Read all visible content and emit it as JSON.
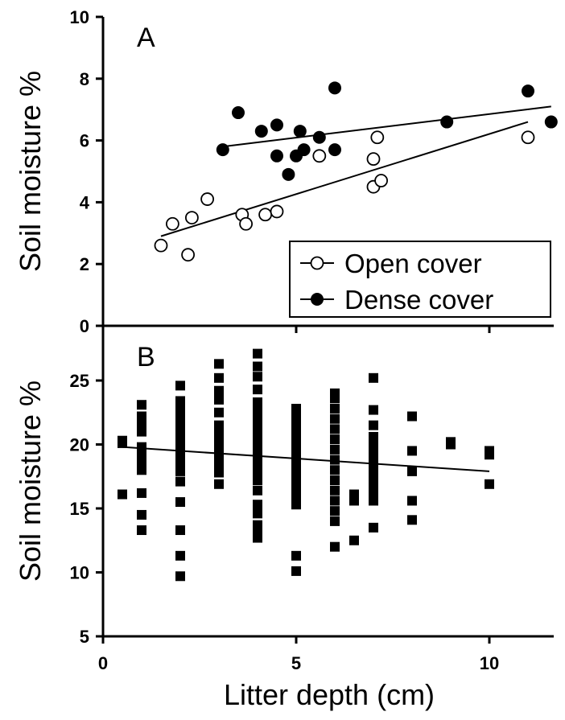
{
  "chart_data": [
    {
      "panel": "A",
      "type": "scatter",
      "ylabel": "Soil moisture %",
      "xlim": [
        0,
        12
      ],
      "ylim": [
        0,
        10
      ],
      "yticks": [
        "0",
        "2",
        "4",
        "6",
        "8",
        "10"
      ],
      "legend_position": "bottom-right",
      "series": [
        {
          "name": "Open cover",
          "marker": "open-circle",
          "points": [
            [
              1.5,
              2.6
            ],
            [
              1.8,
              3.3
            ],
            [
              2.2,
              2.3
            ],
            [
              2.3,
              3.5
            ],
            [
              2.7,
              4.1
            ],
            [
              3.6,
              3.6
            ],
            [
              3.7,
              3.3
            ],
            [
              4.2,
              3.6
            ],
            [
              4.5,
              3.7
            ],
            [
              5.6,
              5.5
            ],
            [
              7.0,
              4.5
            ],
            [
              7.0,
              5.4
            ],
            [
              7.1,
              6.1
            ],
            [
              7.2,
              4.7
            ],
            [
              11.0,
              6.1
            ]
          ],
          "fit": [
            [
              1.5,
              2.9
            ],
            [
              11.0,
              6.6
            ]
          ]
        },
        {
          "name": "Dense cover",
          "marker": "filled-circle",
          "points": [
            [
              3.1,
              5.7
            ],
            [
              3.5,
              6.9
            ],
            [
              4.1,
              6.3
            ],
            [
              4.5,
              6.5
            ],
            [
              4.5,
              5.5
            ],
            [
              4.8,
              4.9
            ],
            [
              5.0,
              5.5
            ],
            [
              5.1,
              6.3
            ],
            [
              5.2,
              5.7
            ],
            [
              5.6,
              6.1
            ],
            [
              6.0,
              7.7
            ],
            [
              6.0,
              5.7
            ],
            [
              8.9,
              6.6
            ],
            [
              11.0,
              7.6
            ],
            [
              11.6,
              6.6
            ]
          ],
          "fit": [
            [
              3.1,
              5.8
            ],
            [
              11.6,
              7.1
            ]
          ]
        }
      ]
    },
    {
      "panel": "B",
      "type": "scatter",
      "xlabel": "Litter depth (cm)",
      "ylabel": "Soil moisture %",
      "xlim": [
        0,
        12
      ],
      "ylim": [
        5,
        28
      ],
      "xticks": [
        "0",
        "5",
        "10"
      ],
      "yticks": [
        "5",
        "10",
        "15",
        "20",
        "25"
      ],
      "series": [
        {
          "marker": "filled-square",
          "points": [
            [
              0.5,
              16.1
            ],
            [
              0.5,
              20.1
            ],
            [
              0.5,
              20.3
            ],
            [
              1,
              13.3
            ],
            [
              1,
              14.5
            ],
            [
              1,
              16.2
            ],
            [
              1,
              18.0
            ],
            [
              1,
              18.5
            ],
            [
              1,
              19.0
            ],
            [
              1,
              19.5
            ],
            [
              1,
              19.8
            ],
            [
              1,
              21.0
            ],
            [
              1,
              21.5
            ],
            [
              1,
              22.2
            ],
            [
              1,
              23.1
            ],
            [
              2,
              9.7
            ],
            [
              2,
              11.3
            ],
            [
              2,
              13.3
            ],
            [
              2,
              15.5
            ],
            [
              2,
              17.1
            ],
            [
              2,
              17.9
            ],
            [
              2,
              18.3
            ],
            [
              2,
              18.8
            ],
            [
              2,
              19.3
            ],
            [
              2,
              19.7
            ],
            [
              2,
              20.1
            ],
            [
              2,
              20.6
            ],
            [
              2,
              21.1
            ],
            [
              2,
              21.6
            ],
            [
              2,
              22.1
            ],
            [
              2,
              22.6
            ],
            [
              2,
              23.1
            ],
            [
              2,
              23.4
            ],
            [
              2,
              24.6
            ],
            [
              3,
              16.9
            ],
            [
              3,
              17.8
            ],
            [
              3,
              18.3
            ],
            [
              3,
              18.8
            ],
            [
              3,
              19.3
            ],
            [
              3,
              19.8
            ],
            [
              3,
              20.3
            ],
            [
              3,
              20.8
            ],
            [
              3,
              21.5
            ],
            [
              3,
              22.5
            ],
            [
              3,
              23.5
            ],
            [
              3,
              24.2
            ],
            [
              3,
              25.2
            ],
            [
              3,
              26.3
            ],
            [
              4,
              12.7
            ],
            [
              4,
              13.2
            ],
            [
              4,
              13.7
            ],
            [
              4,
              14.6
            ],
            [
              4,
              15.3
            ],
            [
              4,
              16.4
            ],
            [
              4,
              17.2
            ],
            [
              4,
              17.8
            ],
            [
              4,
              18.3
            ],
            [
              4,
              18.8
            ],
            [
              4,
              19.3
            ],
            [
              4,
              19.8
            ],
            [
              4,
              20.3
            ],
            [
              4,
              20.8
            ],
            [
              4,
              21.3
            ],
            [
              4,
              21.8
            ],
            [
              4,
              22.3
            ],
            [
              4,
              22.8
            ],
            [
              4,
              23.3
            ],
            [
              4,
              24.3
            ],
            [
              4,
              25.3
            ],
            [
              4,
              26.1
            ],
            [
              4,
              27.1
            ],
            [
              5,
              10.1
            ],
            [
              5,
              11.3
            ],
            [
              5,
              15.3
            ],
            [
              5,
              15.9
            ],
            [
              5,
              16.6
            ],
            [
              5,
              17.2
            ],
            [
              5,
              17.8
            ],
            [
              5,
              18.3
            ],
            [
              5,
              18.8
            ],
            [
              5,
              19.3
            ],
            [
              5,
              19.8
            ],
            [
              5,
              20.3
            ],
            [
              5,
              20.8
            ],
            [
              5,
              21.3
            ],
            [
              5,
              21.8
            ],
            [
              5,
              22.3
            ],
            [
              5,
              22.8
            ],
            [
              6,
              12.0
            ],
            [
              6,
              14.0
            ],
            [
              6,
              14.8
            ],
            [
              6,
              15.6
            ],
            [
              6,
              16.4
            ],
            [
              6,
              17.2
            ],
            [
              6,
              18.0
            ],
            [
              6,
              18.8
            ],
            [
              6,
              19.6
            ],
            [
              6,
              20.4
            ],
            [
              6,
              21.2
            ],
            [
              6,
              22.0
            ],
            [
              6,
              22.8
            ],
            [
              6,
              23.6
            ],
            [
              6,
              24.0
            ],
            [
              6.5,
              12.5
            ],
            [
              6.5,
              15.6
            ],
            [
              6.5,
              16.1
            ],
            [
              7,
              13.5
            ],
            [
              7,
              15.6
            ],
            [
              7,
              16.3
            ],
            [
              7,
              17.0
            ],
            [
              7,
              17.6
            ],
            [
              7,
              18.2
            ],
            [
              7,
              18.8
            ],
            [
              7,
              19.4
            ],
            [
              7,
              20.0
            ],
            [
              7,
              20.6
            ],
            [
              7,
              21.5
            ],
            [
              7,
              22.7
            ],
            [
              7,
              25.2
            ],
            [
              8,
              14.1
            ],
            [
              8,
              15.6
            ],
            [
              8,
              17.9
            ],
            [
              8,
              19.5
            ],
            [
              8,
              22.2
            ],
            [
              9,
              20.0
            ],
            [
              9,
              20.2
            ],
            [
              10,
              16.9
            ],
            [
              10,
              19.2
            ],
            [
              10,
              19.5
            ]
          ],
          "fit": [
            [
              0.5,
              19.8
            ],
            [
              10.0,
              17.9
            ]
          ]
        }
      ]
    }
  ]
}
